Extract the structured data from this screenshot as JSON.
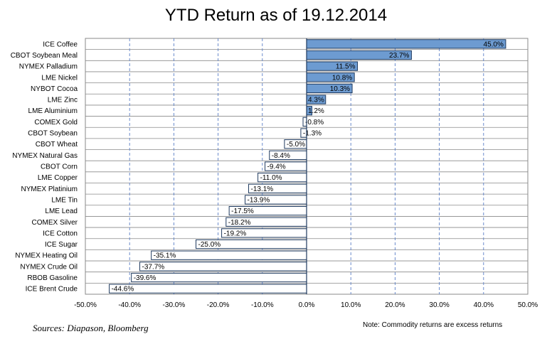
{
  "chart_data": {
    "type": "bar",
    "orientation": "horizontal",
    "title": "YTD Return as of 19.12.2014",
    "xlabel": "",
    "ylabel": "",
    "xlim": [
      -50,
      50
    ],
    "x_ticks": [
      "-50.0%",
      "-40.0%",
      "-30.0%",
      "-20.0%",
      "-10.0%",
      "0.0%",
      "10.0%",
      "20.0%",
      "30.0%",
      "40.0%",
      "50.0%"
    ],
    "grid": true,
    "legend": "none",
    "categories": [
      "ICE Coffee",
      "CBOT Soybean Meal",
      "NYMEX Palladium",
      "LME Nickel",
      "NYBOT Cocoa",
      "LME Zinc",
      "LME Aluminium",
      "COMEX Gold",
      "CBOT Soybean",
      "CBOT Wheat",
      "NYMEX Natural Gas",
      "CBOT Corn",
      "LME Copper",
      "NYMEX Platinium",
      "LME Tin",
      "LME Lead",
      "COMEX Silver",
      "ICE Cotton",
      "ICE Sugar",
      "NYMEX Heating Oil",
      "NYMEX Crude Oil",
      "RBOB Gasoline",
      "ICE Brent Crude"
    ],
    "values": [
      45.0,
      23.7,
      11.5,
      10.8,
      10.3,
      4.3,
      1.2,
      -0.8,
      -1.3,
      -5.0,
      -8.4,
      -9.4,
      -11.0,
      -13.1,
      -13.9,
      -17.5,
      -18.2,
      -19.2,
      -25.0,
      -35.1,
      -37.7,
      -39.6,
      -44.6
    ],
    "value_labels": [
      "45.0%",
      "23.7%",
      "11.5%",
      "10.8%",
      "10.3%",
      "4.3%",
      "1.2%",
      "-0.8%",
      "-1.3%",
      "-5.0%",
      "-8.4%",
      "-9.4%",
      "-11.0%",
      "-13.1%",
      "-13.9%",
      "-17.5%",
      "-18.2%",
      "-19.2%",
      "-25.0%",
      "-35.1%",
      "-37.7%",
      "-39.6%",
      "-44.6%"
    ],
    "colors": {
      "positive": "#6d9bd1",
      "negative": "#ffffff",
      "border": "#1f3a5f",
      "grid_vertical": "#5b7fc7",
      "grid_horizontal": "#8a8a8a"
    }
  },
  "footer": {
    "source": "Sources: Diapason, Bloomberg",
    "note": "Note: Commodity returns are excess returns"
  }
}
